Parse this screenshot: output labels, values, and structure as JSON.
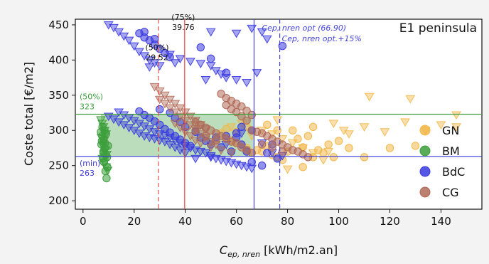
{
  "chart_data": {
    "type": "scatter",
    "panel_label": "E1 peninsula",
    "xlabel_main": "C",
    "xlabel_sub": "ep, nren",
    "xlabel_units": " [kWh/m2.an]",
    "ylabel": "Coste total [€/m2]",
    "xlim": [
      -3,
      156
    ],
    "ylim": [
      188,
      458
    ],
    "xticks": [
      0,
      20,
      40,
      60,
      80,
      100,
      120,
      140
    ],
    "yticks": [
      200,
      250,
      300,
      350,
      400,
      450
    ],
    "grid": false,
    "legend_position": "right",
    "legend": [
      {
        "label": "GN",
        "color": "#f2b84b"
      },
      {
        "label": "BM",
        "color": "#3c9f3c"
      },
      {
        "label": "BdC",
        "color": "#3a3ae0"
      },
      {
        "label": "CG",
        "color": "#b06a58"
      }
    ],
    "reference_lines": {
      "hlines": [
        {
          "y": 323,
          "color": "#3c9f3c",
          "label_top": "(50%)",
          "label_bottom": "323"
        },
        {
          "y": 263,
          "color": "#3a3ae0",
          "label_top": "(min)",
          "label_bottom": "263"
        }
      ],
      "vlines": [
        {
          "x": 29.52,
          "color": "#e05050",
          "dashed": true,
          "label_top": "(50%)",
          "label_bottom": "29.52",
          "label_y": 400
        },
        {
          "x": 39.76,
          "color": "#e04040",
          "dashed": false,
          "label_top": "(75%)",
          "label_bottom": "39.76",
          "label_y": 443
        },
        {
          "x": 66.9,
          "color": "#4444dd",
          "dashed": false,
          "label": "Cep, nren opt (66.90)"
        },
        {
          "x": 76.94,
          "color": "#4444dd",
          "dashed": true,
          "label": "Cep, nren opt.+15%"
        }
      ],
      "band": {
        "x": [
          7,
          66.9
        ],
        "y": [
          263,
          323
        ],
        "color": "#3c9f3c"
      }
    },
    "series": [
      {
        "name": "GN",
        "color": "#f2b84b",
        "points": [
          [
            54,
            296
          ],
          [
            56,
            290
          ],
          [
            58,
            286
          ],
          [
            60,
            282
          ],
          [
            62,
            280
          ],
          [
            64,
            275
          ],
          [
            66,
            268
          ],
          [
            68,
            272
          ],
          [
            70,
            270
          ],
          [
            72,
            278
          ],
          [
            74,
            265
          ],
          [
            76,
            262
          ],
          [
            78,
            258
          ],
          [
            80,
            270
          ],
          [
            82,
            300
          ],
          [
            84,
            288
          ],
          [
            86,
            276
          ],
          [
            88,
            292
          ],
          [
            90,
            305
          ],
          [
            92,
            272
          ],
          [
            94,
            268
          ],
          [
            96,
            280
          ],
          [
            98,
            262
          ],
          [
            100,
            285
          ],
          [
            104,
            275
          ],
          [
            110,
            262
          ],
          [
            120,
            275
          ],
          [
            130,
            278
          ],
          [
            86,
            248
          ],
          [
            90,
            262
          ],
          [
            76,
            300
          ],
          [
            72,
            308
          ],
          [
            64,
            305
          ],
          [
            60,
            298
          ],
          [
            56,
            302
          ]
        ],
        "triangles": [
          [
            70,
            300
          ],
          [
            74,
            295
          ],
          [
            78,
            288
          ],
          [
            82,
            282
          ],
          [
            86,
            275
          ],
          [
            90,
            268
          ],
          [
            94,
            258
          ],
          [
            98,
            310
          ],
          [
            102,
            300
          ],
          [
            110,
            305
          ],
          [
            118,
            298
          ],
          [
            126,
            312
          ],
          [
            134,
            300
          ],
          [
            140,
            308
          ],
          [
            146,
            322
          ],
          [
            112,
            348
          ],
          [
            128,
            345
          ],
          [
            146,
            305
          ],
          [
            80,
            245
          ],
          [
            96,
            270
          ],
          [
            104,
            295
          ],
          [
            66,
            292
          ],
          [
            62,
            310
          ],
          [
            58,
            305
          ],
          [
            76,
            315
          ]
        ]
      },
      {
        "name": "BM",
        "color": "#3c9f3c",
        "points": [
          [
            7,
            298
          ],
          [
            7.5,
            292
          ],
          [
            8,
            287
          ],
          [
            7.2,
            280
          ],
          [
            8.5,
            275
          ],
          [
            8,
            270
          ],
          [
            9,
            265
          ],
          [
            7.8,
            260
          ],
          [
            8.2,
            255
          ],
          [
            9.5,
            248
          ],
          [
            8.8,
            242
          ],
          [
            9.2,
            232
          ],
          [
            7.6,
            305
          ],
          [
            8.4,
            300
          ],
          [
            9,
            295
          ],
          [
            7.4,
            285
          ],
          [
            8.6,
            282
          ],
          [
            9.8,
            278
          ],
          [
            8,
            268
          ],
          [
            9.4,
            262
          ]
        ],
        "triangles": [
          [
            7,
            315
          ],
          [
            7.5,
            310
          ],
          [
            8,
            305
          ],
          [
            8.5,
            300
          ],
          [
            9,
            295
          ],
          [
            7.2,
            290
          ],
          [
            8.2,
            285
          ],
          [
            7.8,
            278
          ],
          [
            8.8,
            272
          ],
          [
            9.3,
            266
          ],
          [
            7.6,
            260
          ],
          [
            8.4,
            254
          ],
          [
            9,
            248
          ],
          [
            9.6,
            243
          ]
        ]
      },
      {
        "name": "BdC",
        "color": "#3a3ae0",
        "points": [
          [
            22,
            438
          ],
          [
            24,
            432
          ],
          [
            26,
            428
          ],
          [
            28,
            422
          ],
          [
            30,
            416
          ],
          [
            32,
            410
          ],
          [
            34,
            404
          ],
          [
            24,
            440
          ],
          [
            28,
            430
          ],
          [
            22,
            327
          ],
          [
            24,
            322
          ],
          [
            26,
            318
          ],
          [
            28,
            313
          ],
          [
            30,
            308
          ],
          [
            32,
            302
          ],
          [
            34,
            297
          ],
          [
            36,
            292
          ],
          [
            38,
            287
          ],
          [
            40,
            282
          ],
          [
            42,
            278
          ],
          [
            44,
            298
          ],
          [
            46,
            290
          ],
          [
            48,
            285
          ],
          [
            50,
            280
          ],
          [
            52,
            290
          ],
          [
            54,
            276
          ],
          [
            56,
            292
          ],
          [
            60,
            290
          ],
          [
            62,
            280
          ],
          [
            64,
            270
          ],
          [
            66,
            255
          ],
          [
            70,
            250
          ],
          [
            72,
            268
          ],
          [
            74,
            280
          ],
          [
            76,
            260
          ],
          [
            78,
            420
          ],
          [
            30,
            330
          ],
          [
            34,
            325
          ],
          [
            36,
            318
          ],
          [
            38,
            312
          ],
          [
            40,
            305
          ],
          [
            58,
            270
          ],
          [
            60,
            296
          ],
          [
            62,
            305
          ],
          [
            46,
            418
          ],
          [
            50,
            402
          ],
          [
            56,
            382
          ],
          [
            66,
            300
          ]
        ],
        "triangles": [
          [
            10,
            450
          ],
          [
            12,
            446
          ],
          [
            14,
            440
          ],
          [
            16,
            434
          ],
          [
            18,
            428
          ],
          [
            20,
            420
          ],
          [
            22,
            412
          ],
          [
            24,
            406
          ],
          [
            26,
            400
          ],
          [
            28,
            396
          ],
          [
            10,
            320
          ],
          [
            12,
            316
          ],
          [
            14,
            312
          ],
          [
            16,
            308
          ],
          [
            18,
            304
          ],
          [
            20,
            300
          ],
          [
            22,
            296
          ],
          [
            24,
            292
          ],
          [
            26,
            290
          ],
          [
            28,
            288
          ],
          [
            30,
            286
          ],
          [
            32,
            284
          ],
          [
            34,
            280
          ],
          [
            36,
            276
          ],
          [
            38,
            272
          ],
          [
            40,
            268
          ],
          [
            14,
            326
          ],
          [
            16,
            322
          ],
          [
            18,
            318
          ],
          [
            20,
            314
          ],
          [
            22,
            310
          ],
          [
            24,
            306
          ],
          [
            26,
            302
          ],
          [
            28,
            298
          ],
          [
            30,
            295
          ],
          [
            32,
            293
          ],
          [
            34,
            290
          ],
          [
            36,
            286
          ],
          [
            38,
            282
          ],
          [
            40,
            278
          ],
          [
            42,
            275
          ],
          [
            44,
            272
          ],
          [
            46,
            270
          ],
          [
            48,
            268
          ],
          [
            50,
            264
          ],
          [
            52,
            260
          ],
          [
            54,
            258
          ],
          [
            56,
            256
          ],
          [
            58,
            254
          ],
          [
            60,
            252
          ],
          [
            62,
            250
          ],
          [
            64,
            248
          ],
          [
            66,
            246
          ],
          [
            34,
            408
          ],
          [
            38,
            402
          ],
          [
            42,
            398
          ],
          [
            46,
            395
          ],
          [
            50,
            392
          ],
          [
            52,
            385
          ],
          [
            54,
            380
          ],
          [
            56,
            375
          ],
          [
            60,
            372
          ],
          [
            64,
            368
          ],
          [
            68,
            382
          ],
          [
            50,
            440
          ],
          [
            60,
            438
          ],
          [
            66,
            445
          ],
          [
            70,
            440
          ],
          [
            72,
            430
          ],
          [
            26,
            390
          ],
          [
            30,
            392
          ],
          [
            36,
            396
          ],
          [
            48,
            372
          ],
          [
            44,
            260
          ],
          [
            50,
            262
          ],
          [
            56,
            280
          ],
          [
            62,
            296
          ],
          [
            70,
            282
          ],
          [
            74,
            268
          ],
          [
            78,
            264
          ]
        ]
      },
      {
        "name": "CG",
        "color": "#b06a58",
        "points": [
          [
            54,
            352
          ],
          [
            56,
            346
          ],
          [
            58,
            342
          ],
          [
            60,
            338
          ],
          [
            62,
            334
          ],
          [
            64,
            328
          ],
          [
            66,
            322
          ],
          [
            56,
            336
          ],
          [
            58,
            330
          ],
          [
            60,
            326
          ],
          [
            62,
            320
          ],
          [
            64,
            314
          ],
          [
            66,
            300
          ],
          [
            68,
            298
          ],
          [
            70,
            296
          ],
          [
            72,
            292
          ],
          [
            74,
            288
          ],
          [
            76,
            284
          ],
          [
            78,
            280
          ],
          [
            80,
            276
          ],
          [
            82,
            272
          ],
          [
            84,
            270
          ],
          [
            86,
            266
          ],
          [
            88,
            262
          ],
          [
            44,
            312
          ],
          [
            46,
            308
          ],
          [
            48,
            304
          ],
          [
            50,
            300
          ],
          [
            52,
            296
          ],
          [
            54,
            292
          ],
          [
            56,
            288
          ],
          [
            58,
            284
          ],
          [
            60,
            282
          ],
          [
            62,
            276
          ],
          [
            64,
            272
          ],
          [
            66,
            268
          ],
          [
            44,
            300
          ],
          [
            48,
            292
          ],
          [
            52,
            286
          ],
          [
            70,
            280
          ],
          [
            74,
            276
          ],
          [
            78,
            270
          ]
        ],
        "triangles": [
          [
            28,
            362
          ],
          [
            30,
            356
          ],
          [
            32,
            350
          ],
          [
            34,
            344
          ],
          [
            36,
            338
          ],
          [
            38,
            332
          ],
          [
            40,
            326
          ],
          [
            42,
            320
          ],
          [
            44,
            314
          ],
          [
            46,
            308
          ],
          [
            48,
            302
          ],
          [
            30,
            344
          ],
          [
            32,
            338
          ],
          [
            34,
            332
          ],
          [
            36,
            326
          ],
          [
            38,
            320
          ],
          [
            40,
            314
          ],
          [
            42,
            308
          ],
          [
            44,
            302
          ],
          [
            46,
            296
          ],
          [
            48,
            290
          ],
          [
            50,
            284
          ],
          [
            52,
            280
          ],
          [
            36,
            310
          ],
          [
            38,
            304
          ],
          [
            40,
            298
          ],
          [
            42,
            292
          ],
          [
            44,
            286
          ],
          [
            46,
            282
          ],
          [
            50,
            276
          ],
          [
            54,
            272
          ],
          [
            58,
            268
          ]
        ]
      }
    ]
  }
}
